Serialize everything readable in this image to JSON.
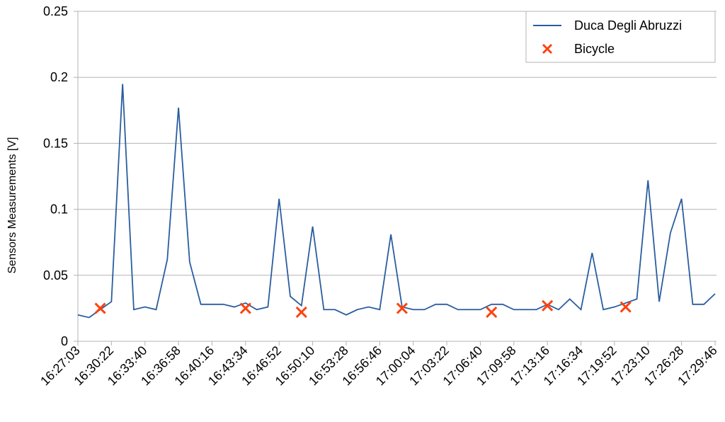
{
  "chart_data": {
    "type": "line",
    "y_label": "Sensors Measurements [V]",
    "categories": [
      "16:27:03",
      null,
      null,
      "16:30:22",
      null,
      null,
      "16:33:40",
      null,
      null,
      "16:36:58",
      null,
      null,
      "16:40:16",
      null,
      null,
      "16:43:34",
      null,
      null,
      "16:46:52",
      null,
      null,
      "16:50:10",
      null,
      null,
      "16:53:28",
      null,
      null,
      "16:56:46",
      null,
      null,
      "17:00:04",
      null,
      null,
      "17:03:22",
      null,
      null,
      "17:06:40",
      null,
      null,
      "17:09:58",
      null,
      null,
      "17:13:16",
      null,
      null,
      "17:16:34",
      null,
      null,
      "17:19:52",
      null,
      null,
      "17:23:10",
      null,
      null,
      "17:26:28",
      null,
      null,
      "17:29:46"
    ],
    "series": [
      {
        "name": "Duca Degli Abruzzi",
        "color": "#2a5d9f",
        "marker": "line",
        "values": [
          0.02,
          0.018,
          0.024,
          0.03,
          0.195,
          0.024,
          0.026,
          0.024,
          0.062,
          0.177,
          0.06,
          0.028,
          0.028,
          0.028,
          0.026,
          0.029,
          0.024,
          0.026,
          0.108,
          0.034,
          0.027,
          0.087,
          0.024,
          0.024,
          0.02,
          0.024,
          0.026,
          0.024,
          0.081,
          0.026,
          0.024,
          0.024,
          0.028,
          0.028,
          0.024,
          0.024,
          0.024,
          0.028,
          0.028,
          0.024,
          0.024,
          0.024,
          0.028,
          0.024,
          0.032,
          0.024,
          0.067,
          0.024,
          0.026,
          0.029,
          0.032,
          0.122,
          0.03,
          0.082,
          0.108,
          0.028,
          0.028,
          0.036
        ]
      },
      {
        "name": "Bicycle",
        "color": "#ff420e",
        "marker": "x",
        "values": [
          null,
          null,
          0.025,
          null,
          null,
          null,
          null,
          null,
          null,
          null,
          null,
          null,
          null,
          null,
          null,
          0.025,
          null,
          null,
          null,
          null,
          0.022,
          null,
          null,
          null,
          null,
          null,
          null,
          null,
          null,
          0.025,
          null,
          null,
          null,
          null,
          null,
          null,
          null,
          0.022,
          null,
          null,
          null,
          null,
          0.027,
          null,
          null,
          null,
          null,
          null,
          null,
          0.026,
          null,
          null,
          null,
          null,
          null,
          null,
          null,
          null
        ]
      }
    ],
    "ylim": [
      0,
      0.25
    ],
    "yticks": [
      0,
      0.05,
      0.1,
      0.15,
      0.2,
      0.25
    ],
    "grid": true,
    "legend": "top-right"
  }
}
